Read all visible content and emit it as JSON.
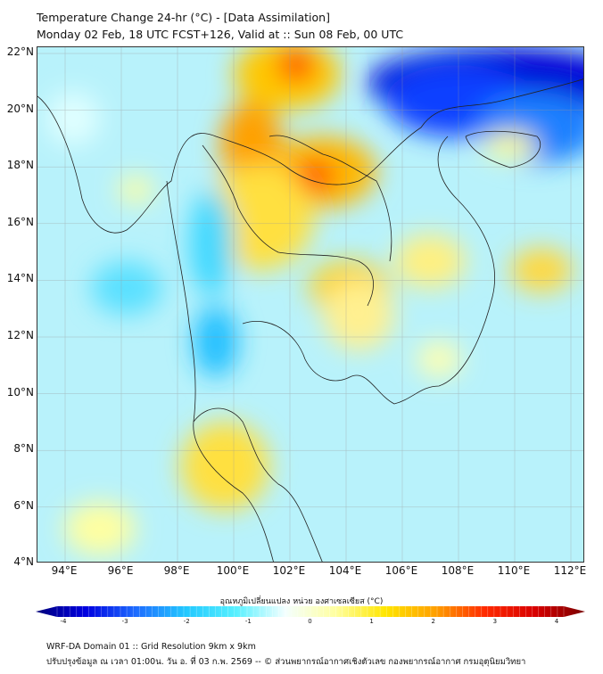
{
  "title": {
    "line1": "Temperature Change 24-hr (°C) - [Data Assimilation]",
    "line2": "Monday 02 Feb, 18 UTC FCST+126, Valid at :: Sun 08 Feb, 00 UTC"
  },
  "axes": {
    "lat_labels": [
      "22°N",
      "20°N",
      "18°N",
      "16°N",
      "14°N",
      "12°N",
      "10°N",
      "8°N",
      "6°N",
      "4°N"
    ],
    "lon_labels": [
      "94°E",
      "96°E",
      "98°E",
      "100°E",
      "102°E",
      "104°E",
      "106°E",
      "108°E",
      "110°E",
      "112°E"
    ]
  },
  "colorbar": {
    "title": "อุณหภูมิเปลี่ยนแปลง หน่วย องศาเซลเซียส (°C)",
    "ticks": [
      "-4",
      "-3",
      "-2",
      "-1",
      "0",
      "1",
      "2",
      "3",
      "4"
    ],
    "min": -4,
    "max": 4,
    "colors": [
      "#00007a",
      "#0000e0",
      "#1e6cff",
      "#22c8ff",
      "#56f0ff",
      "#f4ffff",
      "#ffffa0",
      "#ffe600",
      "#ffa000",
      "#ff2a00",
      "#d80000",
      "#7a0000"
    ]
  },
  "footer": {
    "line1": "WRF-DA Domain 01 :: Grid Resolution 9km x 9km",
    "line2": "ปรับปรุงข้อมูล ณ เวลา 01:00น. วัน อ. ที่ 03 ก.พ. 2569 -- © ส่วนพยากรณ์อากาศเชิงตัวเลข กองพยากรณ์อากาศ กรมอุตุนิยมวิทยา"
  }
}
